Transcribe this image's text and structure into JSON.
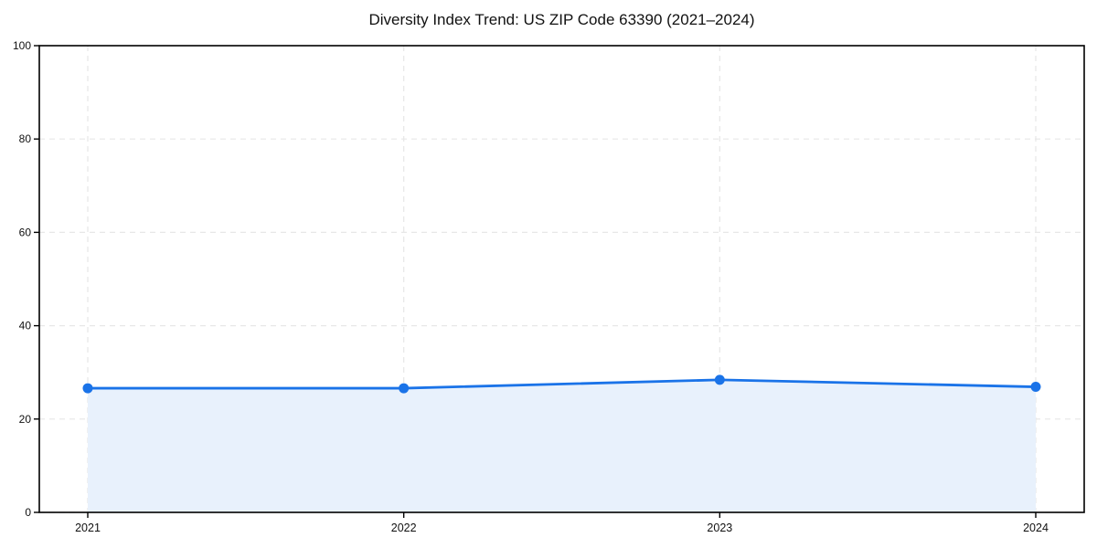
{
  "figure": {
    "background": "#ffffff"
  },
  "chart_data": {
    "type": "area",
    "title": "Diversity Index Trend: US ZIP Code 63390 (2021–2024)",
    "categories": [
      "2021",
      "2022",
      "2023",
      "2024"
    ],
    "values": [
      26.6,
      26.6,
      28.4,
      26.9
    ],
    "xlabel": "",
    "ylabel": "",
    "ylim": [
      0,
      100
    ],
    "yticks": [
      0,
      20,
      40,
      60,
      80,
      100
    ],
    "grid": true,
    "grid_style": "dashed",
    "legend_position": "none",
    "colors": {
      "line": "#1a73e8",
      "marker": "#1a73e8",
      "fill": "#e8f1fc",
      "grid": "#e7e7e7",
      "spine": "#000000",
      "tick_text": "#111111"
    }
  }
}
